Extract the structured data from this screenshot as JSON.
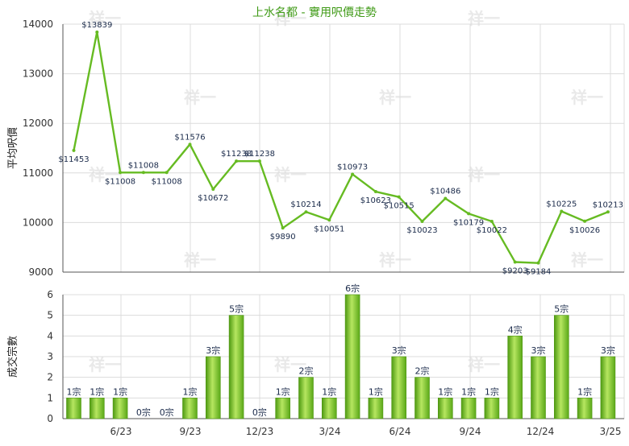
{
  "chart_data": [
    {
      "type": "line",
      "title": "上水名都 - 實用呎價走勢",
      "ylabel": "平均呎價",
      "ylim": [
        9000,
        14000
      ],
      "yticks": [
        9000,
        10000,
        11000,
        12000,
        13000,
        14000
      ],
      "x_tick_labels": [
        "6/23",
        "9/23",
        "12/23",
        "3/24",
        "6/24",
        "9/24",
        "12/24",
        "3/25"
      ],
      "grid": true,
      "series": [
        {
          "color": "#66bb22",
          "points": [
            {
              "i": 0,
              "value": 11453,
              "label": "$11453"
            },
            {
              "i": 1,
              "value": 13839,
              "label": "$13839"
            },
            {
              "i": 2,
              "value": 11008,
              "label": "$11008"
            },
            {
              "i": 3,
              "value": 11008,
              "label": "$11008"
            },
            {
              "i": 4,
              "value": 11008,
              "label": "$11008"
            },
            {
              "i": 5,
              "value": 11576,
              "label": "$11576"
            },
            {
              "i": 6,
              "value": 10672,
              "label": "$10672"
            },
            {
              "i": 7,
              "value": 11238,
              "label": "$11238"
            },
            {
              "i": 8,
              "value": 11238,
              "label": "$11238"
            },
            {
              "i": 9,
              "value": 9890,
              "label": "$9890"
            },
            {
              "i": 10,
              "value": 10214,
              "label": "$10214"
            },
            {
              "i": 11,
              "value": 10051,
              "label": "$10051"
            },
            {
              "i": 12,
              "value": 10973,
              "label": "$10973"
            },
            {
              "i": 13,
              "value": 10623,
              "label": "$10623"
            },
            {
              "i": 14,
              "value": 10515,
              "label": "$10515"
            },
            {
              "i": 15,
              "value": 10023,
              "label": "$10023"
            },
            {
              "i": 16,
              "value": 10486,
              "label": "$10486"
            },
            {
              "i": 17,
              "value": 10179,
              "label": "$10179"
            },
            {
              "i": 18,
              "value": 10022,
              "label": "$10022"
            },
            {
              "i": 19,
              "value": 9203,
              "label": "$9203"
            },
            {
              "i": 20,
              "value": 9184,
              "label": "$9184"
            },
            {
              "i": 21,
              "value": 10225,
              "label": "$10225"
            },
            {
              "i": 22,
              "value": 10026,
              "label": "$10026"
            },
            {
              "i": 23,
              "value": 10213,
              "label": "$10213"
            }
          ]
        }
      ]
    },
    {
      "type": "bar",
      "ylabel": "成交宗數",
      "ylim": [
        0,
        6
      ],
      "yticks": [
        0,
        1,
        2,
        3,
        4,
        5,
        6
      ],
      "x_tick_labels": [
        "6/23",
        "9/23",
        "12/23",
        "3/24",
        "6/24",
        "9/24",
        "12/24",
        "3/25"
      ],
      "grid": true,
      "values": [
        1,
        1,
        1,
        0,
        0,
        1,
        3,
        5,
        0,
        1,
        2,
        1,
        6,
        1,
        3,
        2,
        1,
        1,
        1,
        4,
        3,
        5,
        1,
        3
      ],
      "labels": [
        "1宗",
        "1宗",
        "1宗",
        "0宗",
        "0宗",
        "1宗",
        "3宗",
        "5宗",
        "0宗",
        "1宗",
        "2宗",
        "1宗",
        "6宗",
        "1宗",
        "3宗",
        "2宗",
        "1宗",
        "1宗",
        "1宗",
        "4宗",
        "3宗",
        "5宗",
        "1宗",
        "3宗"
      ],
      "bar_color": "#77c22a"
    }
  ],
  "watermark": "祥一"
}
